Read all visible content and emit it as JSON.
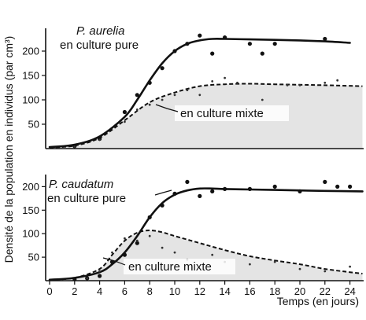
{
  "chart_data": {
    "type": "line",
    "ylabel": "Densité de la population en individus (par cm³)",
    "xlabel": "Temps (en jours)",
    "xlim": [
      0,
      25
    ],
    "x_ticks": [
      0,
      2,
      4,
      6,
      8,
      10,
      12,
      14,
      16,
      18,
      20,
      22,
      24
    ],
    "panels": [
      {
        "species": "P. aurelia",
        "ylim": [
          0,
          250
        ],
        "y_ticks": [
          50,
          100,
          150,
          200
        ],
        "series": [
          {
            "name": "en culture pure",
            "style": "solid",
            "x": [
              0,
              2,
              4,
              6,
              7,
              8,
              9,
              10,
              11,
              12,
              13,
              14,
              16,
              18,
              20,
              22,
              24
            ],
            "y": [
              3,
              8,
              25,
              65,
              100,
              140,
              175,
              200,
              215,
              222,
              225,
              225,
              224,
              223,
              222,
              220,
              217
            ],
            "points": [
              [
                2,
                5
              ],
              [
                4,
                20
              ],
              [
                6,
                75
              ],
              [
                7,
                110
              ],
              [
                8,
                135
              ],
              [
                9,
                165
              ],
              [
                10,
                200
              ],
              [
                11,
                215
              ],
              [
                12,
                232
              ],
              [
                13,
                195
              ],
              [
                14,
                228
              ],
              [
                16,
                215
              ],
              [
                17,
                195
              ],
              [
                18,
                215
              ],
              [
                22,
                225
              ]
            ]
          },
          {
            "name": "en culture mixte",
            "style": "dashed",
            "x": [
              0,
              2,
              4,
              6,
              8,
              10,
              12,
              14,
              16,
              18,
              20,
              22,
              25
            ],
            "y": [
              2,
              6,
              22,
              58,
              95,
              115,
              128,
              132,
              133,
              132,
              131,
              130,
              128
            ],
            "points": [
              [
                2,
                4
              ],
              [
                4,
                18
              ],
              [
                6,
                55
              ],
              [
                7,
                80
              ],
              [
                8,
                90
              ],
              [
                9,
                100
              ],
              [
                10,
                110
              ],
              [
                11,
                120
              ],
              [
                12,
                110
              ],
              [
                13,
                138
              ],
              [
                14,
                145
              ],
              [
                15,
                135
              ],
              [
                17,
                100
              ],
              [
                19,
                130
              ],
              [
                20,
                130
              ],
              [
                22,
                135
              ],
              [
                23,
                140
              ]
            ]
          }
        ],
        "annotations": [
          "P. aurelia",
          "en culture pure",
          "en culture mixte"
        ]
      },
      {
        "species": "P. caudatum",
        "ylim": [
          0,
          230
        ],
        "y_ticks": [
          50,
          100,
          150,
          200
        ],
        "series": [
          {
            "name": "en culture pure",
            "style": "solid",
            "x": [
              0,
              2,
              4,
              5,
              6,
              7,
              8,
              9,
              10,
              11,
              12,
              13,
              14,
              16,
              18,
              20,
              22,
              25
            ],
            "y": [
              2,
              6,
              18,
              35,
              60,
              95,
              135,
              165,
              183,
              192,
              196,
              196,
              195,
              194,
              193,
              192,
              191,
              190
            ],
            "points": [
              [
                2,
                3
              ],
              [
                3,
                5
              ],
              [
                4,
                10
              ],
              [
                5,
                40
              ],
              [
                6,
                55
              ],
              [
                7,
                80
              ],
              [
                8,
                135
              ],
              [
                9,
                160
              ],
              [
                10,
                185
              ],
              [
                11,
                210
              ],
              [
                12,
                180
              ],
              [
                13,
                190
              ],
              [
                14,
                195
              ],
              [
                16,
                195
              ],
              [
                18,
                200
              ],
              [
                20,
                190
              ],
              [
                22,
                210
              ],
              [
                23,
                200
              ],
              [
                24,
                200
              ]
            ]
          },
          {
            "name": "en culture mixte",
            "style": "dashed",
            "x": [
              0,
              2,
              4,
              5,
              6,
              7,
              8,
              9,
              10,
              12,
              14,
              16,
              18,
              20,
              22,
              24,
              25
            ],
            "y": [
              2,
              6,
              25,
              55,
              85,
              102,
              107,
              103,
              95,
              80,
              65,
              52,
              43,
              35,
              25,
              18,
              15
            ],
            "points": [
              [
                3,
                5
              ],
              [
                4,
                20
              ],
              [
                5,
                60
              ],
              [
                6,
                90
              ],
              [
                7,
                85
              ],
              [
                8,
                95
              ],
              [
                9,
                70
              ],
              [
                10,
                60
              ],
              [
                11,
                45
              ],
              [
                13,
                55
              ],
              [
                14,
                40
              ],
              [
                16,
                35
              ],
              [
                18,
                40
              ],
              [
                20,
                25
              ],
              [
                22,
                20
              ],
              [
                24,
                30
              ]
            ]
          }
        ],
        "annotations": [
          "P. caudatum",
          "en culture pure",
          "en culture mixte"
        ]
      }
    ]
  }
}
